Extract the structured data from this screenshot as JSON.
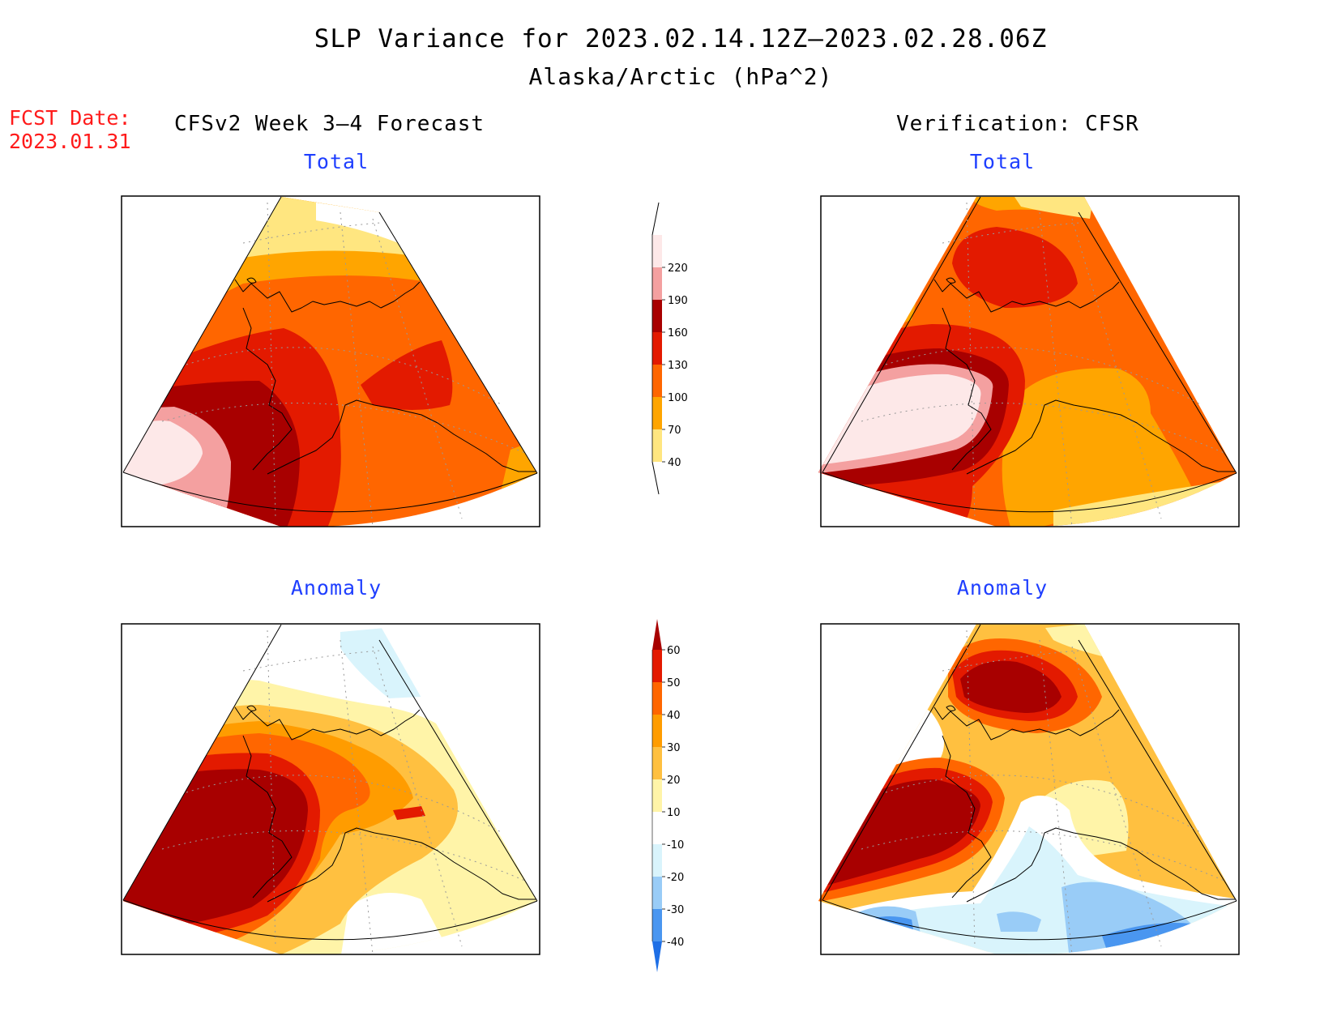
{
  "title": "SLP Variance for 2023.02.14.12Z—2023.02.28.06Z",
  "subtitle": "Alaska/Arctic (hPa^2)",
  "fcst_date_label": "FCST Date:",
  "fcst_date": "2023.01.31",
  "left_column_heading": "CFSv2 Week 3—4 Forecast",
  "right_column_heading": "Verification: CFSR",
  "panels": {
    "forecast_total": {
      "title": "Total"
    },
    "forecast_anomaly": {
      "title": "Anomaly"
    },
    "verification_total": {
      "title": "Total"
    },
    "verification_anomaly": {
      "title": "Anomaly"
    }
  },
  "total_colorbar": {
    "labels": [
      "40",
      "70",
      "100",
      "130",
      "160",
      "190",
      "220"
    ],
    "colors": [
      "#ffe680",
      "#ffa500",
      "#ff6600",
      "#e31a00",
      "#a80000",
      "#f4a0a0",
      "#fde8e8"
    ]
  },
  "anomaly_colorbar": {
    "labels": [
      "-40",
      "-30",
      "-20",
      "-10",
      "10",
      "20",
      "30",
      "40",
      "50",
      "60"
    ],
    "colors": [
      "#1e6fe6",
      "#4a96f0",
      "#99ccf7",
      "#d9f4fc",
      "#ffffff",
      "#fff4a8",
      "#ffc040",
      "#ff9c00",
      "#ff6600",
      "#e31a00",
      "#a80000"
    ]
  }
}
